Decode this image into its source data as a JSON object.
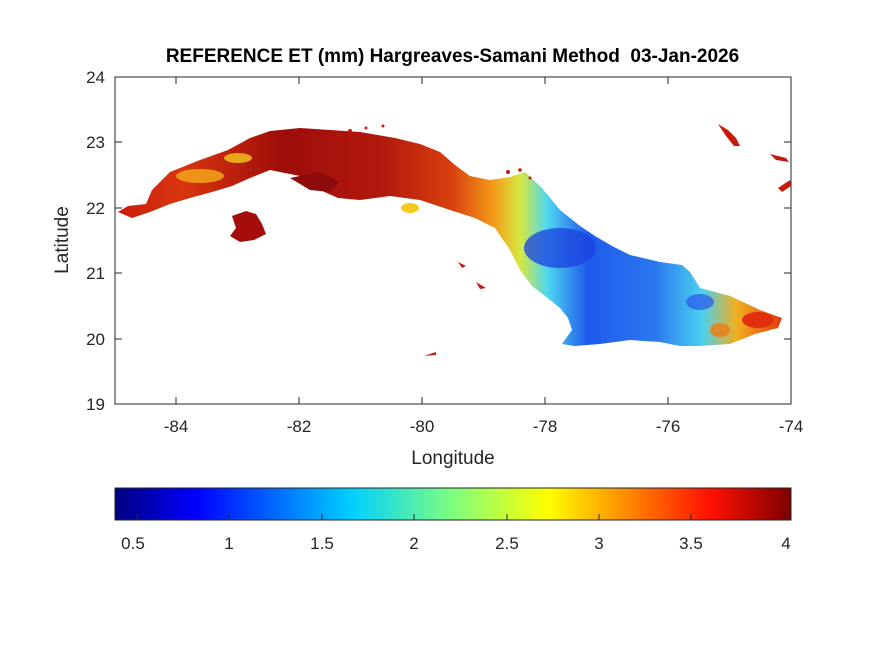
{
  "map": {
    "title": "REFERENCE ET (mm) Hargreaves-Samani Method  03-Jan-2026",
    "xlabel": "Longitude",
    "ylabel": "Latitude",
    "x_ticks": [
      "-84",
      "-82",
      "-80",
      "-78",
      "-76",
      "-74"
    ],
    "y_ticks": [
      "19",
      "20",
      "21",
      "22",
      "23",
      "24"
    ],
    "xlim": [
      -85,
      -74
    ],
    "ylim": [
      19,
      24
    ],
    "colorbar": {
      "ticks": [
        "0.5",
        "1",
        "1.5",
        "2",
        "2.5",
        "3",
        "3.5",
        "4"
      ],
      "range": [
        0.33,
        4
      ],
      "colormap": "jet"
    },
    "region_colors": {
      "west_dark_red": "#a50d0b",
      "west_orange": "#f07a10",
      "central_yellow": "#f6c91e",
      "central_cyan": "#46d3f0",
      "east_blue": "#1c3fe0",
      "east_cyan": "#47d8f0",
      "southeast_red": "#e0300e"
    }
  }
}
